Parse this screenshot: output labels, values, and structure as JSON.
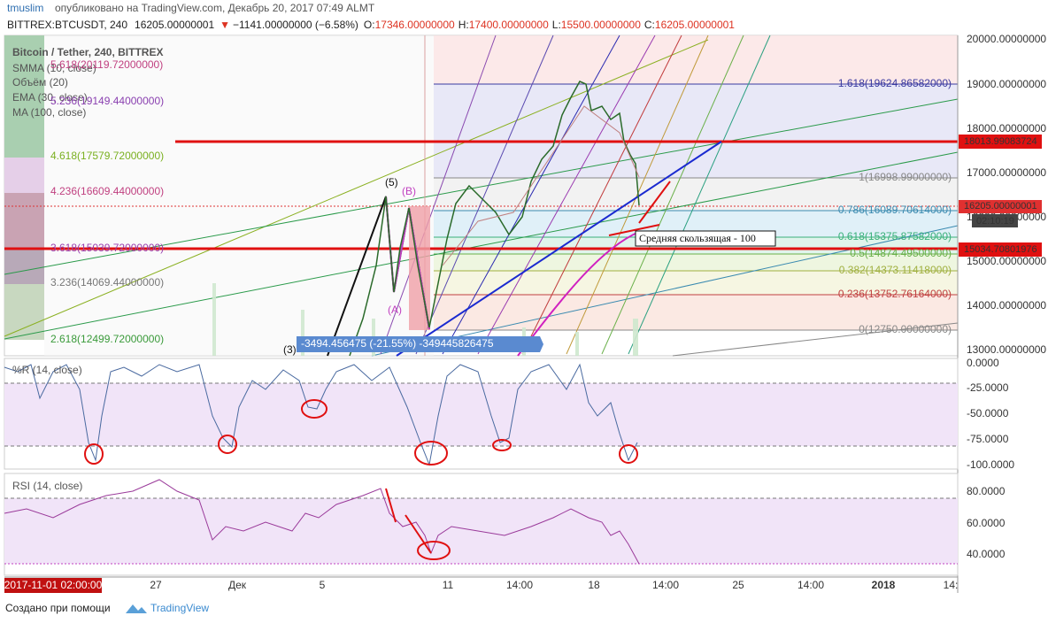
{
  "header": {
    "user": "tmuslim",
    "published": "опубликовано на TradingView.com, Декабрь 20, 2017 07:49 ALMT",
    "symbol": "BITTREX:BTCUSDT, 240",
    "last": "16205.00000001",
    "arrow": "▼",
    "change": "−1141.00000000 (−6.58%)",
    "o_label": "O:",
    "o": "17346.00000000",
    "h_label": "H:",
    "h": "17400.00000000",
    "l_label": "L:",
    "l": "15500.00000000",
    "c_label": "C:",
    "c": "16205.00000001"
  },
  "legend": [
    "Bitcoin / Tether, 240, BITTREX",
    "SMMA (10, close)",
    "Объём (20)",
    "EMA (30, close)",
    "MA (100, close)"
  ],
  "fib_extension": [
    "5.618(20119.72000000)",
    "5.236(19149.44000000)",
    "4.618(17579.72000000)",
    "4.236(16609.44000000)",
    "3.618(15039.72000000)",
    "3.236(14069.44000000)",
    "2.618(12499.72000000)"
  ],
  "fib_retracement": [
    "1.618(19624.86582000)",
    "1(16998.99000000)",
    "0.786(16089.70614000)",
    "0.618(15375.87582000)",
    "0.5(14874.49500000)",
    "0.382(14373.11418000)",
    "0.236(13752.76164000)",
    "0(12750.00000000)"
  ],
  "waves": [
    "(5)",
    "(B)",
    "(A)",
    "(3)"
  ],
  "measure": "-3494.456475 (-21.55%) -349445826475",
  "annotation": "Средняя скользящая - 100",
  "price_axis": [
    "20000.00000000",
    "19000.00000000",
    "18000.00000000",
    "17000.00000000",
    "16000.00000000",
    "15000.00000000",
    "14000.00000000",
    "13000.00000000"
  ],
  "price_badges": [
    "18013.99083724",
    "16205.00000001",
    "02:10:19",
    "15034.70801976"
  ],
  "williams": {
    "title": "%R (14, close)",
    "axis": [
      "0.0000",
      "-25.0000",
      "-50.0000",
      "-75.0000",
      "-100.0000"
    ]
  },
  "rsi": {
    "title": "RSI (14, close)",
    "axis": [
      "80.0000",
      "60.0000",
      "40.0000"
    ]
  },
  "time_axis": [
    "2017-11-01 02:00:00",
    "27",
    "Дек",
    "5",
    "11",
    "14:00",
    "18",
    "14:00",
    "25",
    "14:00",
    "2018",
    "14:"
  ],
  "footer": {
    "text": "Создано при помощи",
    "brand": "TradingView"
  }
}
